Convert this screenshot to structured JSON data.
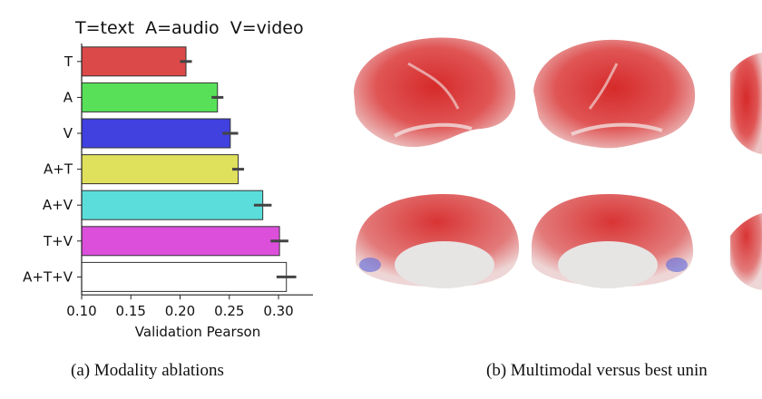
{
  "chart_data": {
    "type": "bar",
    "orientation": "horizontal",
    "title": "T=text  A=audio  V=video",
    "xlabel": "Validation Pearson",
    "ylabel": "",
    "xlim": [
      0.1,
      0.335
    ],
    "xticks": [
      "0.10",
      "0.15",
      "0.20",
      "0.25",
      "0.30"
    ],
    "categories": [
      "T",
      "A",
      "V",
      "A+T",
      "A+V",
      "T+V",
      "A+T+V"
    ],
    "values": [
      0.206,
      0.238,
      0.251,
      0.259,
      0.284,
      0.301,
      0.308
    ],
    "errors": [
      0.006,
      0.006,
      0.008,
      0.006,
      0.009,
      0.009,
      0.01
    ],
    "colors": [
      "#dc4949",
      "#58e158",
      "#4141e0",
      "#dfe05b",
      "#5bdedb",
      "#db4fdb",
      "#ffffff"
    ],
    "grid": false
  },
  "captions": {
    "a": "(a) Modality ablations",
    "b": "(b) Multimodal versus best unin"
  }
}
